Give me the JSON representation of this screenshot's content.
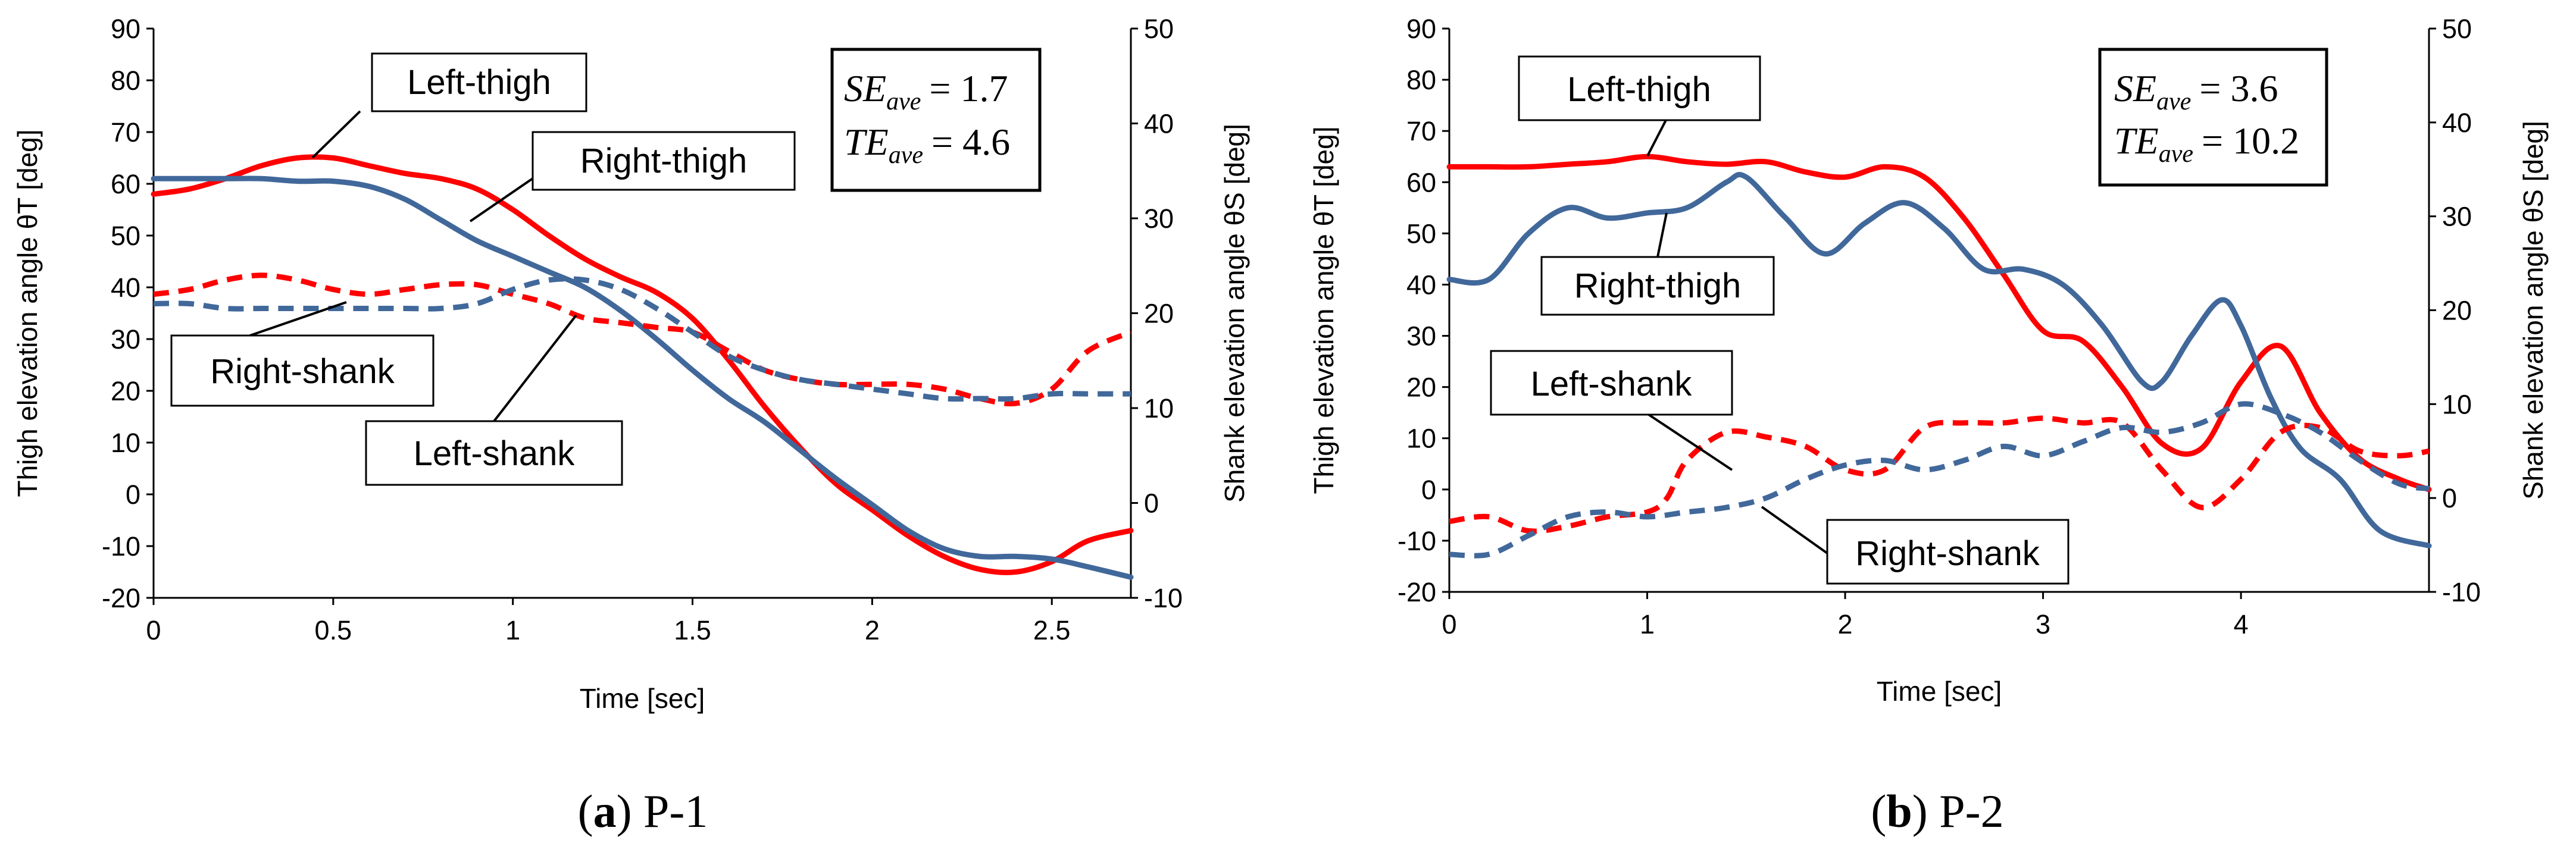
{
  "colors": {
    "left": "#ff0000",
    "right": "#41689a",
    "axis": "#000000"
  },
  "chart_data": [
    {
      "type": "line",
      "panel_id": "a",
      "caption_label": "a",
      "caption_title": "P-1",
      "xlabel": "Time [sec]",
      "ylabel": "Thigh elevation angle θT [deg]",
      "ylabel2": "Shank elevation angle θS [deg]",
      "xlim": [
        0,
        2.72
      ],
      "ylim": [
        -20,
        90
      ],
      "y2lim": [
        -10,
        50
      ],
      "xticks": [
        0,
        0.5,
        1,
        1.5,
        2,
        2.5
      ],
      "xtick_labels": [
        "0",
        "0.5",
        "1",
        "1.5",
        "2",
        "2.5"
      ],
      "yticks": [
        -20,
        -10,
        0,
        10,
        20,
        30,
        40,
        50,
        60,
        70,
        80,
        90
      ],
      "y2ticks": [
        -10,
        0,
        10,
        20,
        30,
        40,
        50
      ],
      "stats": [
        {
          "label": "SE",
          "sub": "ave",
          "value": "= 1.7"
        },
        {
          "label": "TE",
          "sub": "ave",
          "value": "= 4.6"
        }
      ],
      "series": [
        {
          "name": "Left-thigh",
          "color": "left",
          "dash": false,
          "axis": "left",
          "x": [
            0,
            0.1,
            0.2,
            0.3,
            0.4,
            0.5,
            0.6,
            0.7,
            0.8,
            0.9,
            1.0,
            1.1,
            1.2,
            1.3,
            1.4,
            1.5,
            1.6,
            1.7,
            1.8,
            1.9,
            2.0,
            2.1,
            2.2,
            2.3,
            2.4,
            2.5,
            2.6,
            2.72
          ],
          "y": [
            58,
            59,
            61,
            63.5,
            65,
            65,
            63.5,
            62,
            61,
            59,
            55,
            50,
            45.5,
            42,
            39,
            34,
            26,
            17,
            9,
            2,
            -3,
            -8,
            -12,
            -14.5,
            -15,
            -13,
            -9,
            -7
          ]
        },
        {
          "name": "Right-thigh",
          "color": "right",
          "dash": false,
          "axis": "left",
          "x": [
            0,
            0.1,
            0.2,
            0.3,
            0.4,
            0.5,
            0.6,
            0.7,
            0.8,
            0.9,
            1.0,
            1.1,
            1.2,
            1.3,
            1.4,
            1.5,
            1.6,
            1.7,
            1.8,
            1.9,
            2.0,
            2.1,
            2.2,
            2.3,
            2.4,
            2.5,
            2.6,
            2.72
          ],
          "y": [
            61,
            61,
            61,
            61,
            60.5,
            60.5,
            59.5,
            57,
            53,
            49,
            46,
            43,
            40,
            35.5,
            30,
            24,
            18.5,
            14,
            8.5,
            3,
            -2,
            -7,
            -10.5,
            -12,
            -12,
            -12.5,
            -14,
            -16
          ]
        },
        {
          "name": "Left-shank",
          "color": "left",
          "dash": true,
          "axis": "right",
          "x": [
            0,
            0.1,
            0.2,
            0.3,
            0.4,
            0.5,
            0.6,
            0.7,
            0.8,
            0.9,
            1.0,
            1.1,
            1.2,
            1.3,
            1.4,
            1.5,
            1.6,
            1.7,
            1.8,
            1.9,
            2.0,
            2.1,
            2.2,
            2.3,
            2.4,
            2.5,
            2.6,
            2.72
          ],
          "y": [
            22,
            22.5,
            23.5,
            24,
            23.5,
            22.5,
            22,
            22.5,
            23,
            23,
            22,
            21,
            19.5,
            19,
            18.5,
            18,
            16,
            14,
            13,
            12.5,
            12.5,
            12.5,
            12,
            11,
            10.5,
            12,
            16,
            18
          ]
        },
        {
          "name": "Right-shank",
          "color": "right",
          "dash": true,
          "axis": "right",
          "x": [
            0,
            0.1,
            0.2,
            0.3,
            0.4,
            0.5,
            0.6,
            0.7,
            0.8,
            0.9,
            1.0,
            1.1,
            1.2,
            1.3,
            1.4,
            1.5,
            1.6,
            1.7,
            1.8,
            1.9,
            2.0,
            2.1,
            2.2,
            2.3,
            2.4,
            2.5,
            2.6,
            2.72
          ],
          "y": [
            21,
            21,
            20.5,
            20.5,
            20.5,
            20.5,
            20.5,
            20.5,
            20.5,
            21,
            22.5,
            23.5,
            23.5,
            22.5,
            20.5,
            18,
            15.5,
            14,
            13,
            12.5,
            12,
            11.5,
            11,
            11,
            11,
            11.5,
            11.5,
            11.5
          ]
        }
      ],
      "callouts": [
        {
          "text": "Left-thigh"
        },
        {
          "text": "Right-thigh"
        },
        {
          "text": "Right-shank"
        },
        {
          "text": "Left-shank"
        }
      ]
    },
    {
      "type": "line",
      "panel_id": "b",
      "caption_label": "b",
      "caption_title": "P-2",
      "xlabel": "Time [sec]",
      "ylabel": "Thigh elevation angle θT [deg]",
      "ylabel2": "Shank elevation angle θS [deg]",
      "xlim": [
        0,
        4.95
      ],
      "ylim": [
        -20,
        90
      ],
      "y2lim": [
        -10,
        50
      ],
      "xticks": [
        0,
        1,
        2,
        3,
        4
      ],
      "xtick_labels": [
        "0",
        "1",
        "2",
        "3",
        "4"
      ],
      "yticks": [
        -20,
        -10,
        0,
        10,
        20,
        30,
        40,
        50,
        60,
        70,
        80,
        90
      ],
      "y2ticks": [
        -10,
        0,
        10,
        20,
        30,
        40,
        50
      ],
      "stats": [
        {
          "label": "SE",
          "sub": "ave",
          "value": "= 3.6"
        },
        {
          "label": "TE",
          "sub": "ave",
          "value": "= 10.2"
        }
      ],
      "series": [
        {
          "name": "Left-thigh",
          "color": "left",
          "dash": false,
          "axis": "left",
          "x": [
            0,
            0.2,
            0.4,
            0.6,
            0.8,
            1.0,
            1.2,
            1.4,
            1.6,
            1.8,
            2.0,
            2.2,
            2.4,
            2.6,
            2.8,
            3.0,
            3.2,
            3.4,
            3.6,
            3.8,
            4.0,
            4.2,
            4.4,
            4.6,
            4.8,
            4.95
          ],
          "y": [
            63,
            63,
            63,
            63.5,
            64,
            65,
            64,
            63.5,
            64,
            62,
            61,
            63,
            61,
            53,
            42,
            31,
            29,
            20,
            9,
            8,
            21,
            28,
            15,
            6,
            2,
            0
          ]
        },
        {
          "name": "Right-thigh",
          "color": "right",
          "dash": false,
          "axis": "left",
          "x": [
            0,
            0.2,
            0.4,
            0.6,
            0.8,
            1.0,
            1.2,
            1.4,
            1.5,
            1.7,
            1.9,
            2.1,
            2.3,
            2.5,
            2.7,
            2.9,
            3.1,
            3.3,
            3.5,
            3.6,
            3.75,
            3.9,
            4.0,
            4.15,
            4.3,
            4.5,
            4.7,
            4.95
          ],
          "y": [
            41,
            41,
            50,
            55,
            53,
            54,
            55,
            60,
            61,
            53,
            46,
            52,
            56,
            51,
            43,
            43,
            40,
            32,
            21,
            21,
            30,
            37,
            32,
            18,
            8,
            2,
            -8,
            -11
          ]
        },
        {
          "name": "Left-shank",
          "color": "left",
          "dash": true,
          "axis": "right",
          "x": [
            0,
            0.2,
            0.4,
            0.6,
            0.8,
            1.0,
            1.1,
            1.2,
            1.4,
            1.6,
            1.8,
            2.0,
            2.2,
            2.4,
            2.6,
            2.8,
            3.0,
            3.2,
            3.4,
            3.6,
            3.8,
            4.0,
            4.2,
            4.4,
            4.6,
            4.8,
            4.95
          ],
          "y": [
            -2.5,
            -2,
            -3.5,
            -3,
            -2,
            -1.5,
            0,
            4,
            7,
            6.5,
            5.5,
            3,
            3,
            7.5,
            8,
            8,
            8.5,
            8,
            8,
            3,
            -1,
            2,
            7,
            7.5,
            5,
            4.5,
            5
          ]
        },
        {
          "name": "Right-shank",
          "color": "right",
          "dash": true,
          "axis": "right",
          "x": [
            0,
            0.2,
            0.4,
            0.6,
            0.8,
            1.0,
            1.2,
            1.4,
            1.6,
            1.8,
            2.0,
            2.2,
            2.4,
            2.6,
            2.8,
            3.0,
            3.2,
            3.4,
            3.6,
            3.8,
            4.0,
            4.2,
            4.4,
            4.6,
            4.8,
            4.95
          ],
          "y": [
            -6,
            -6,
            -4,
            -2,
            -1.5,
            -2,
            -1.5,
            -1,
            0,
            2,
            3.5,
            4,
            3,
            4,
            5.5,
            4.5,
            6,
            7.5,
            7,
            8,
            10,
            9,
            7,
            4,
            1.5,
            1
          ]
        }
      ],
      "callouts": [
        {
          "text": "Left-thigh"
        },
        {
          "text": "Right-thigh"
        },
        {
          "text": "Left-shank"
        },
        {
          "text": "Right-shank"
        }
      ]
    }
  ]
}
